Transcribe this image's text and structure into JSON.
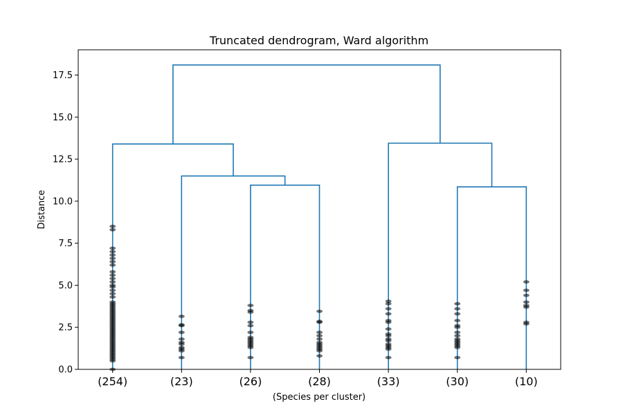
{
  "chart_data": {
    "type": "dendrogram",
    "title": "Truncated dendrogram, Ward algorithm",
    "xlabel": "(Species per cluster)",
    "ylabel": "Distance",
    "ylim": [
      0,
      19
    ],
    "yticks": [
      "0.0",
      "2.5",
      "5.0",
      "7.5",
      "10.0",
      "12.5",
      "15.0",
      "17.5"
    ],
    "leaves": [
      "(254)",
      "(23)",
      "(26)",
      "(28)",
      "(33)",
      "(30)",
      "(10)"
    ],
    "merges": [
      {
        "left": 2,
        "right": 3,
        "height": 10.95
      },
      {
        "left": 5,
        "right": 6,
        "height": 10.85
      },
      {
        "left": 1,
        "right": "2-3",
        "height": 11.5
      },
      {
        "left": 0,
        "right": "1-2-3",
        "height": 13.4
      },
      {
        "left": 4,
        "right": "5-6",
        "height": 13.45
      },
      {
        "left": "0-1-2-3",
        "right": "4-5-6",
        "height": 18.1
      }
    ],
    "link_color": "#1f77b4",
    "dot_color": "#000000",
    "leaf_distances": [
      [
        0.0,
        0.5,
        0.6,
        0.7,
        0.8,
        0.9,
        1.0,
        1.1,
        1.2,
        1.3,
        1.4,
        1.5,
        1.6,
        1.7,
        1.8,
        1.9,
        2.0,
        2.1,
        2.2,
        2.3,
        2.4,
        2.5,
        2.6,
        2.7,
        2.8,
        2.9,
        3.0,
        3.1,
        3.2,
        3.3,
        3.4,
        3.5,
        3.6,
        3.7,
        3.8,
        3.9,
        4.0,
        4.3,
        4.5,
        4.7,
        4.9,
        5.0,
        5.2,
        5.4,
        5.6,
        5.8,
        6.2,
        6.4,
        6.6,
        6.8,
        7.0,
        7.2,
        8.3,
        8.5
      ],
      [
        0.7,
        1.1,
        1.2,
        1.3,
        1.5,
        1.6,
        1.8,
        2.2,
        2.6,
        2.65,
        3.15
      ],
      [
        0.7,
        1.3,
        1.4,
        1.5,
        1.6,
        1.7,
        1.8,
        1.9,
        2.2,
        2.6,
        2.8,
        3.4,
        3.5,
        3.8
      ],
      [
        0.8,
        1.1,
        1.2,
        1.3,
        1.4,
        1.5,
        1.6,
        1.8,
        2.0,
        2.2,
        2.8,
        2.85,
        3.45
      ],
      [
        0.7,
        1.2,
        1.3,
        1.4,
        1.5,
        1.7,
        1.8,
        2.0,
        2.1,
        2.4,
        2.8,
        2.9,
        3.3,
        3.6,
        3.9,
        4.05
      ],
      [
        0.7,
        1.3,
        1.4,
        1.5,
        1.6,
        1.7,
        1.8,
        2.0,
        2.2,
        2.5,
        2.6,
        2.9,
        3.3,
        3.6,
        3.9
      ],
      [
        2.7,
        2.8,
        3.7,
        3.8,
        4.0,
        4.4,
        4.7,
        5.2
      ]
    ]
  }
}
